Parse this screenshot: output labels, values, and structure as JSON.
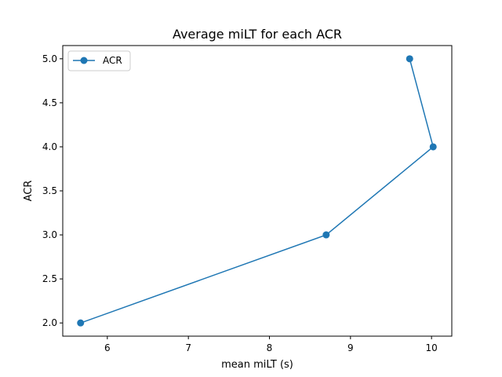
{
  "chart_data": {
    "type": "line",
    "title": "Average miLT for each ACR",
    "xlabel": "mean miLT (s)",
    "ylabel": "ACR",
    "xlim": [
      5.45,
      10.25
    ],
    "ylim": [
      1.85,
      5.15
    ],
    "x_ticks": [
      6,
      7,
      8,
      9,
      10
    ],
    "y_ticks": [
      2.0,
      2.5,
      3.0,
      3.5,
      4.0,
      4.5,
      5.0
    ],
    "x_tick_labels": [
      "6",
      "7",
      "8",
      "9",
      "10"
    ],
    "y_tick_labels": [
      "2.0",
      "2.5",
      "3.0",
      "3.5",
      "4.0",
      "4.5",
      "5.0"
    ],
    "grid": false,
    "legend_position": "top-left",
    "series": [
      {
        "name": "ACR",
        "color": "#1f77b4",
        "marker": "circle",
        "x": [
          5.67,
          8.7,
          10.02,
          9.73
        ],
        "y": [
          2.0,
          3.0,
          4.0,
          5.0
        ]
      }
    ]
  }
}
